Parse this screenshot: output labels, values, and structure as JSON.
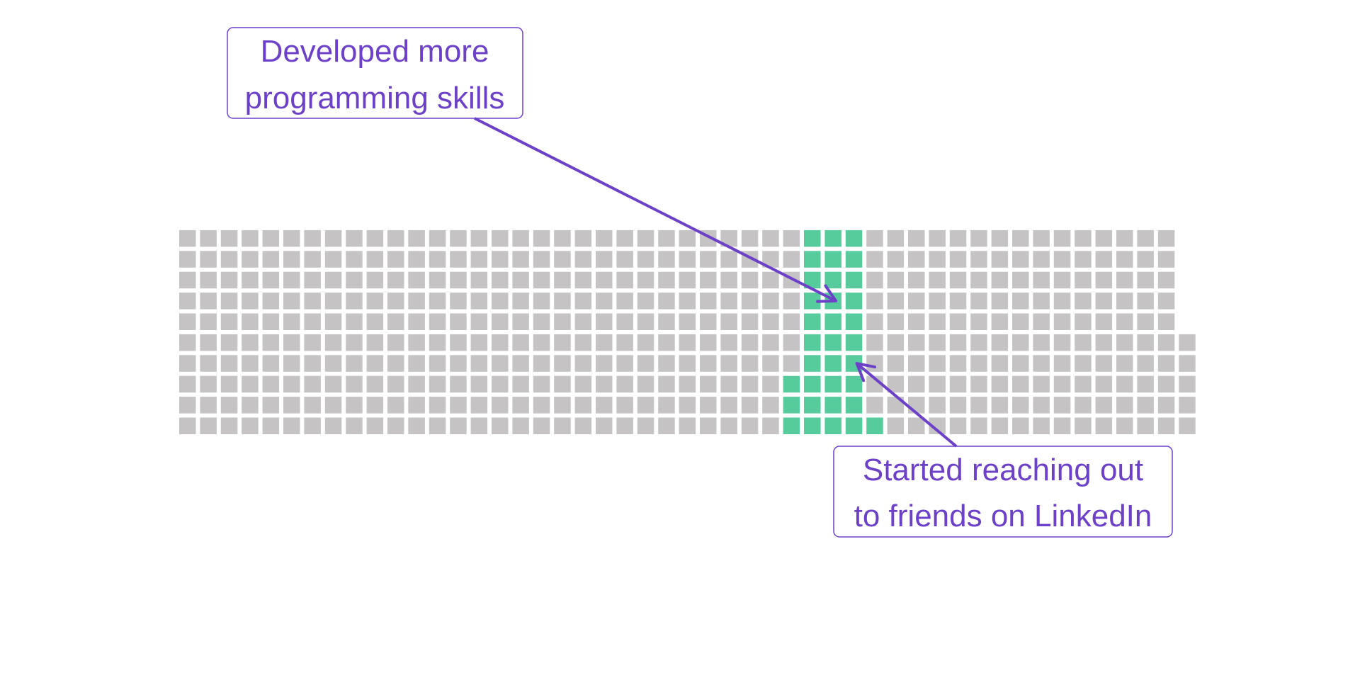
{
  "chart_data": {
    "type": "waffle",
    "title": "",
    "xlabel": "",
    "ylabel": "",
    "grid": false,
    "legend": "none",
    "cells_per_column": 10,
    "columns": [
      {
        "count": 10,
        "highlight": 0
      },
      {
        "count": 10,
        "highlight": 0
      },
      {
        "count": 10,
        "highlight": 0
      },
      {
        "count": 10,
        "highlight": 0
      },
      {
        "count": 10,
        "highlight": 0
      },
      {
        "count": 10,
        "highlight": 0
      },
      {
        "count": 10,
        "highlight": 0
      },
      {
        "count": 10,
        "highlight": 0
      },
      {
        "count": 10,
        "highlight": 0
      },
      {
        "count": 10,
        "highlight": 0
      },
      {
        "count": 10,
        "highlight": 0
      },
      {
        "count": 10,
        "highlight": 0
      },
      {
        "count": 10,
        "highlight": 0
      },
      {
        "count": 10,
        "highlight": 0
      },
      {
        "count": 10,
        "highlight": 0
      },
      {
        "count": 10,
        "highlight": 0
      },
      {
        "count": 10,
        "highlight": 0
      },
      {
        "count": 10,
        "highlight": 0
      },
      {
        "count": 10,
        "highlight": 0
      },
      {
        "count": 10,
        "highlight": 0
      },
      {
        "count": 10,
        "highlight": 0
      },
      {
        "count": 10,
        "highlight": 0
      },
      {
        "count": 10,
        "highlight": 0
      },
      {
        "count": 10,
        "highlight": 0
      },
      {
        "count": 10,
        "highlight": 0
      },
      {
        "count": 10,
        "highlight": 0
      },
      {
        "count": 10,
        "highlight": 0
      },
      {
        "count": 10,
        "highlight": 0
      },
      {
        "count": 10,
        "highlight": 0
      },
      {
        "count": 10,
        "highlight": 3
      },
      {
        "count": 10,
        "highlight": 10
      },
      {
        "count": 10,
        "highlight": 10
      },
      {
        "count": 10,
        "highlight": 10
      },
      {
        "count": 10,
        "highlight": 1
      },
      {
        "count": 10,
        "highlight": 0
      },
      {
        "count": 10,
        "highlight": 0
      },
      {
        "count": 10,
        "highlight": 0
      },
      {
        "count": 10,
        "highlight": 0
      },
      {
        "count": 10,
        "highlight": 0
      },
      {
        "count": 10,
        "highlight": 0
      },
      {
        "count": 10,
        "highlight": 0
      },
      {
        "count": 10,
        "highlight": 0
      },
      {
        "count": 10,
        "highlight": 0
      },
      {
        "count": 10,
        "highlight": 0
      },
      {
        "count": 10,
        "highlight": 0
      },
      {
        "count": 10,
        "highlight": 0
      },
      {
        "count": 10,
        "highlight": 0
      },
      {
        "count": 10,
        "highlight": 0
      },
      {
        "count": 5,
        "highlight": 0
      }
    ],
    "colors": {
      "base": "#c5c3c3",
      "highlight": "#56cb9c",
      "annotation": "#6c41c8"
    },
    "annotations": [
      {
        "lines": [
          "Developed more",
          "programming skills"
        ],
        "target": {
          "column": 31,
          "row": 3
        }
      },
      {
        "lines": [
          "Started reaching out",
          "to friends on LinkedIn"
        ],
        "target": {
          "column": 32,
          "row": 6
        }
      }
    ]
  }
}
